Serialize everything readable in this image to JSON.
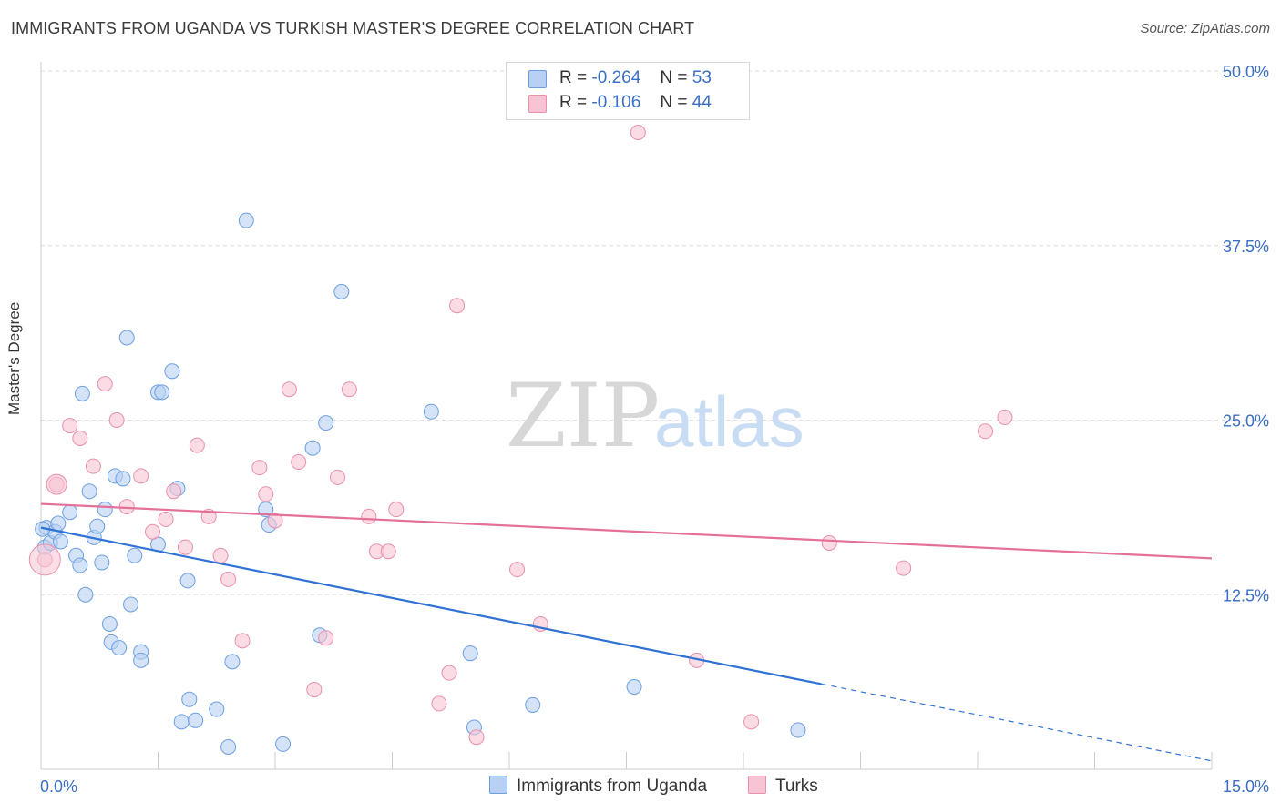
{
  "title": "IMMIGRANTS FROM UGANDA VS TURKISH MASTER'S DEGREE CORRELATION CHART",
  "source": "Source: ZipAtlas.com",
  "watermark": {
    "zip": "ZIP",
    "atlas": "atlas"
  },
  "colors": {
    "blue_fill": "#b8d0f3",
    "blue_stroke": "#6c9fe0",
    "blue_line": "#2f72d4",
    "pink_fill": "#f8c4d3",
    "pink_stroke": "#e98fab",
    "pink_line": "#e46f97",
    "tick_label": "#3a6fc4"
  },
  "stats_legend": [
    {
      "r_label": "R =",
      "r_value": "-0.264",
      "n_label": "N =",
      "n_value": "53"
    },
    {
      "r_label": "R =",
      "r_value": "-0.106",
      "n_label": "N =",
      "n_value": "44"
    }
  ],
  "chart_data": {
    "type": "scatter",
    "title": "IMMIGRANTS FROM UGANDA VS TURKISH MASTER'S DEGREE CORRELATION CHART",
    "xlabel": "",
    "ylabel": "Master's Degree",
    "xlim": [
      0,
      15
    ],
    "ylim": [
      0,
      50
    ],
    "x_tick_labels": [
      "0.0%",
      "15.0%"
    ],
    "y_ticks": [
      12.5,
      25.0,
      37.5,
      50.0
    ],
    "y_tick_labels": [
      "12.5%",
      "25.0%",
      "37.5%",
      "50.0%"
    ],
    "grid": "horizontal dashed",
    "legend_position": "bottom-center",
    "series": [
      {
        "name": "Immigrants from Uganda",
        "color": "#6c9fe0",
        "trend": {
          "x": [
            0.0,
            10.0
          ],
          "y": [
            17.3,
            6.1
          ],
          "dashed_to": [
            15.0,
            0.6
          ]
        },
        "points": [
          [
            0.05,
            15.9
          ],
          [
            0.07,
            17.3
          ],
          [
            0.12,
            16.2
          ],
          [
            0.18,
            17.0
          ],
          [
            0.22,
            17.6
          ],
          [
            0.25,
            16.3
          ],
          [
            0.37,
            18.4
          ],
          [
            0.45,
            15.3
          ],
          [
            0.5,
            14.6
          ],
          [
            0.53,
            26.9
          ],
          [
            0.57,
            12.5
          ],
          [
            0.62,
            19.9
          ],
          [
            0.68,
            16.6
          ],
          [
            0.72,
            17.4
          ],
          [
            0.78,
            14.8
          ],
          [
            0.82,
            18.6
          ],
          [
            0.88,
            10.4
          ],
          [
            0.9,
            9.1
          ],
          [
            0.95,
            21.0
          ],
          [
            1.0,
            8.7
          ],
          [
            1.05,
            20.8
          ],
          [
            1.1,
            30.9
          ],
          [
            1.15,
            11.8
          ],
          [
            1.2,
            15.3
          ],
          [
            1.28,
            8.4
          ],
          [
            1.28,
            7.8
          ],
          [
            1.5,
            27.0
          ],
          [
            1.5,
            16.1
          ],
          [
            1.55,
            27.0
          ],
          [
            1.68,
            28.5
          ],
          [
            1.75,
            20.1
          ],
          [
            1.8,
            3.4
          ],
          [
            1.88,
            13.5
          ],
          [
            1.9,
            5.0
          ],
          [
            1.98,
            3.5
          ],
          [
            2.25,
            4.3
          ],
          [
            2.4,
            1.6
          ],
          [
            2.45,
            7.7
          ],
          [
            2.63,
            39.3
          ],
          [
            2.88,
            18.6
          ],
          [
            2.92,
            17.5
          ],
          [
            3.1,
            1.8
          ],
          [
            3.48,
            23.0
          ],
          [
            3.57,
            9.6
          ],
          [
            3.65,
            24.8
          ],
          [
            3.85,
            34.2
          ],
          [
            5.0,
            25.6
          ],
          [
            5.5,
            8.3
          ],
          [
            5.55,
            3.0
          ],
          [
            6.3,
            4.6
          ],
          [
            7.6,
            5.9
          ],
          [
            9.7,
            2.8
          ],
          [
            0.02,
            17.2
          ]
        ]
      },
      {
        "name": "Turks",
        "color": "#e98fab",
        "trend": {
          "x": [
            0.0,
            15.0
          ],
          "y": [
            19.0,
            15.1
          ]
        },
        "points": [
          [
            0.05,
            15.0
          ],
          [
            0.2,
            20.4
          ],
          [
            0.37,
            24.6
          ],
          [
            0.5,
            23.7
          ],
          [
            0.67,
            21.7
          ],
          [
            0.82,
            27.6
          ],
          [
            0.97,
            25.0
          ],
          [
            1.1,
            18.8
          ],
          [
            1.28,
            21.0
          ],
          [
            1.43,
            17.0
          ],
          [
            1.6,
            17.9
          ],
          [
            1.7,
            19.9
          ],
          [
            1.85,
            15.9
          ],
          [
            2.0,
            23.2
          ],
          [
            2.15,
            18.1
          ],
          [
            2.3,
            15.3
          ],
          [
            2.4,
            13.6
          ],
          [
            2.58,
            9.2
          ],
          [
            2.8,
            21.6
          ],
          [
            2.88,
            19.7
          ],
          [
            3.0,
            17.8
          ],
          [
            3.18,
            27.2
          ],
          [
            3.3,
            22.0
          ],
          [
            3.5,
            5.7
          ],
          [
            3.65,
            9.4
          ],
          [
            3.8,
            20.9
          ],
          [
            3.95,
            27.2
          ],
          [
            4.2,
            18.1
          ],
          [
            4.3,
            15.6
          ],
          [
            4.45,
            15.6
          ],
          [
            4.55,
            18.6
          ],
          [
            5.1,
            4.7
          ],
          [
            5.23,
            6.9
          ],
          [
            5.33,
            33.2
          ],
          [
            5.58,
            2.3
          ],
          [
            6.1,
            14.3
          ],
          [
            6.4,
            10.4
          ],
          [
            7.65,
            45.6
          ],
          [
            8.4,
            7.8
          ],
          [
            9.1,
            3.4
          ],
          [
            10.1,
            16.2
          ],
          [
            11.05,
            14.4
          ],
          [
            12.1,
            24.2
          ],
          [
            12.35,
            25.2
          ]
        ]
      }
    ]
  }
}
